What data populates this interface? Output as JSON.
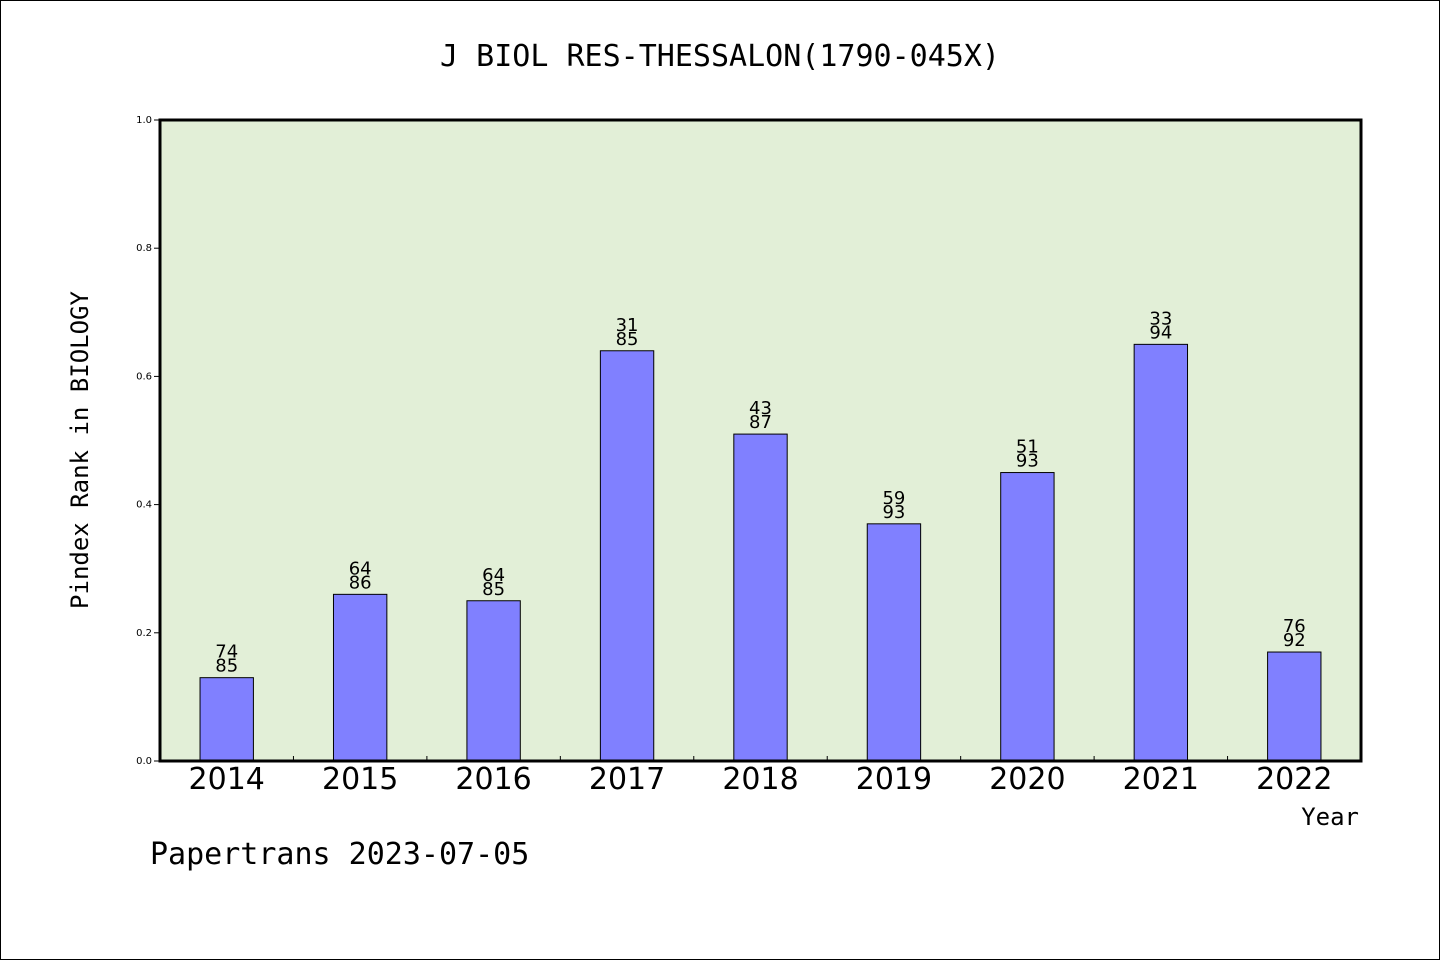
{
  "chart_data": {
    "type": "bar",
    "title": "J BIOL RES-THESSALON(1790-045X)",
    "xlabel": "Year",
    "ylabel": "Pindex Rank in BIOLOGY",
    "ylim": [
      0,
      1.0
    ],
    "yticks": [
      "0.0",
      "0.2",
      "0.4",
      "0.6",
      "0.8",
      "1.0"
    ],
    "categories": [
      "2014",
      "2015",
      "2016",
      "2017",
      "2018",
      "2019",
      "2020",
      "2021",
      "2022"
    ],
    "values": [
      0.13,
      0.26,
      0.25,
      0.64,
      0.51,
      0.37,
      0.45,
      0.65,
      0.17
    ],
    "label_top": [
      "74",
      "64",
      "64",
      "31",
      "43",
      "59",
      "51",
      "33",
      "76"
    ],
    "label_bottom": [
      "85",
      "86",
      "85",
      "85",
      "87",
      "93",
      "93",
      "94",
      "92"
    ],
    "grid": false,
    "colors": {
      "plot_bg": "#e2efd7",
      "bar": "#8080ff",
      "bar_edge": "#000000"
    }
  },
  "footer": "Papertrans 2023-07-05"
}
